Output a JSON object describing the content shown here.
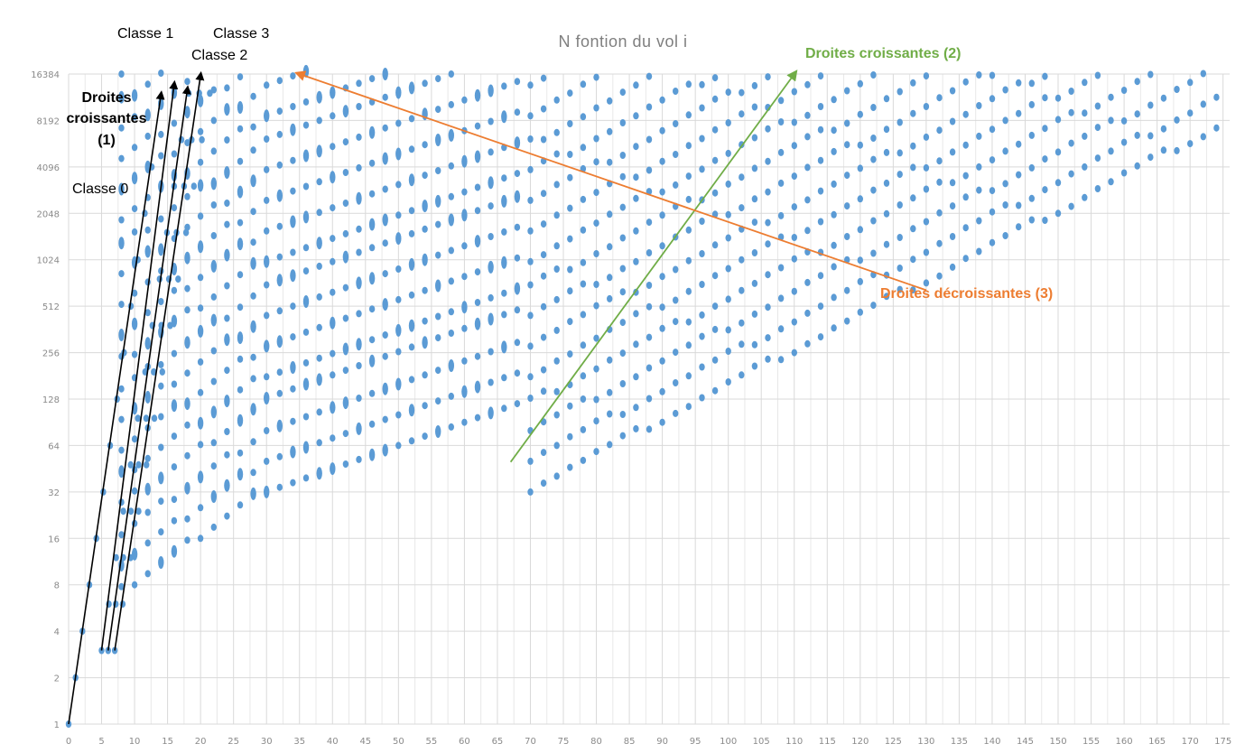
{
  "chart_data": {
    "type": "scatter",
    "title": "N fontion du vol i",
    "x_ticks": [
      0,
      5,
      10,
      15,
      20,
      25,
      30,
      35,
      40,
      45,
      50,
      55,
      60,
      65,
      70,
      75,
      80,
      85,
      90,
      95,
      100,
      105,
      110,
      115,
      120,
      125,
      130,
      135,
      140,
      145,
      150,
      155,
      160,
      165,
      170,
      175
    ],
    "y_ticks": [
      1,
      2,
      4,
      8,
      16,
      32,
      64,
      128,
      256,
      512,
      1024,
      2048,
      4096,
      8192,
      16384
    ],
    "y_tick_labels": [
      "1",
      "2",
      "4",
      "8",
      "16",
      "32",
      "64",
      "128",
      "256",
      "512",
      "1024",
      "2048",
      "4096",
      "8192",
      "16384"
    ],
    "xlim": [
      0,
      176
    ],
    "ylim": [
      1,
      16384
    ],
    "y_scale": "log2",
    "grid": true,
    "marker_color": "#5b9bd5",
    "points_description_note_free": true,
    "lines": [
      {
        "id": "classe0",
        "label": "Classe 0",
        "color": "#000000",
        "from": [
          0,
          1
        ],
        "to": [
          14,
          12000
        ]
      },
      {
        "id": "classe1",
        "label": "Classe 1",
        "color": "#000000",
        "from": [
          5,
          3
        ],
        "to": [
          16,
          14000
        ]
      },
      {
        "id": "classe2",
        "label": "Classe 2",
        "color": "#000000",
        "from": [
          6,
          3
        ],
        "to": [
          18,
          13000
        ]
      },
      {
        "id": "classe3",
        "label": "Classe 3",
        "color": "#000000",
        "from": [
          7,
          3
        ],
        "to": [
          20,
          16000
        ]
      },
      {
        "id": "croissantes2",
        "label": "Droites croissantes (2)",
        "color": "#70ad47",
        "from": [
          67,
          50
        ],
        "to": [
          110,
          16384
        ]
      },
      {
        "id": "decroissantes3",
        "label": "Droites décroissantes (3)",
        "color": "#ed7d31",
        "from": [
          130,
          650
        ],
        "to": [
          35,
          16384
        ]
      }
    ],
    "annotations": {
      "croissantes1_line1": "Droites",
      "croissantes1_line2": "croissantes",
      "croissantes1_line3": "(1)",
      "classe0": "Classe 0",
      "classe1": "Classe 1",
      "classe2": "Classe 2",
      "classe3": "Classe 3",
      "croissantes2": "Droites croissantes (2)",
      "decroissantes3": "Droites décroissantes (3)"
    },
    "annotation_colors": {
      "black": "#000000",
      "green": "#70ad47",
      "orange": "#ed7d31"
    }
  }
}
